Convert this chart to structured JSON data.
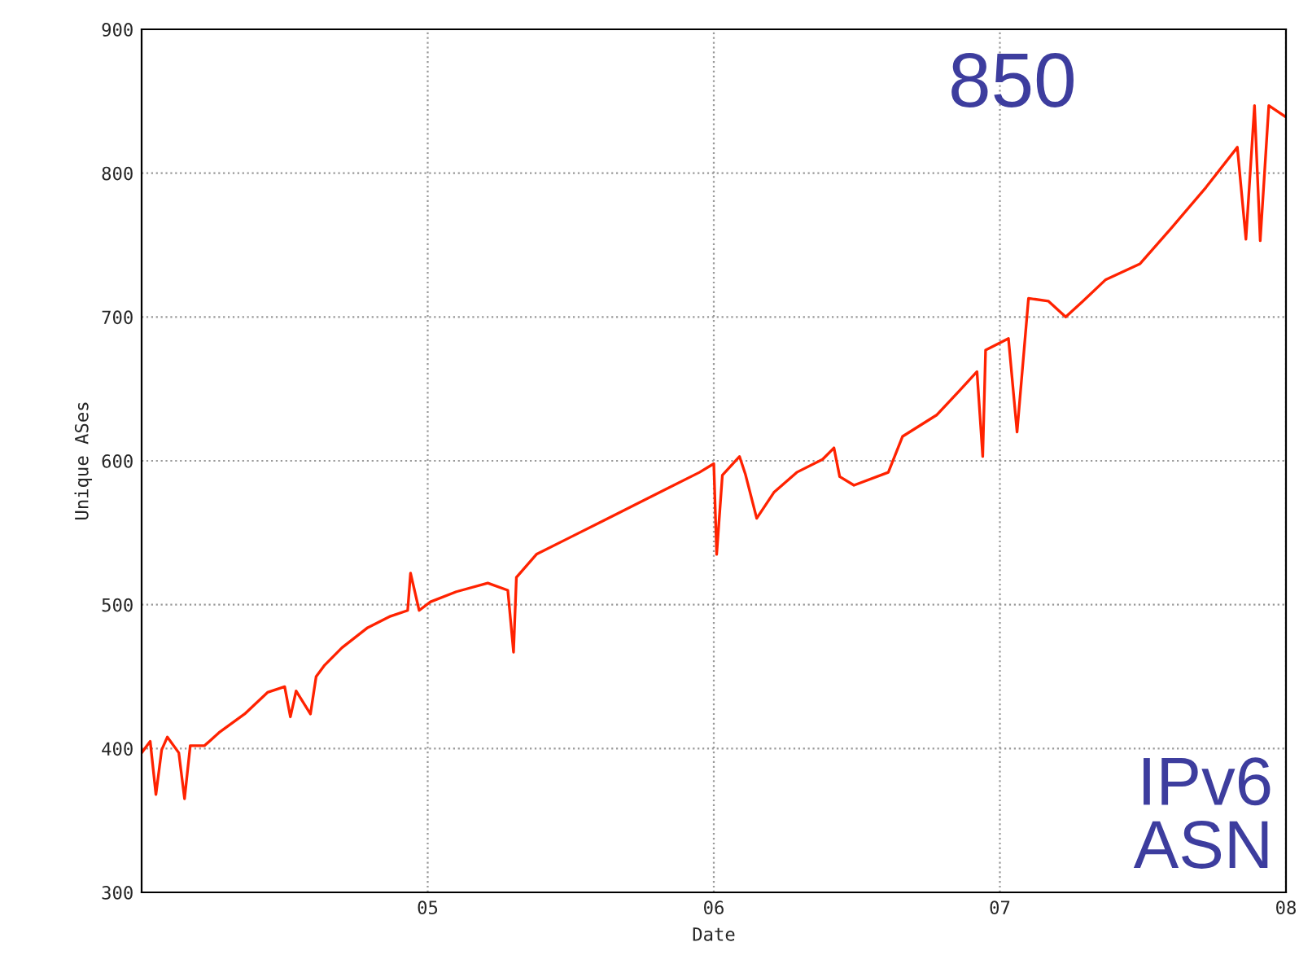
{
  "chart_data": {
    "type": "line",
    "xlabel": "Date",
    "ylabel": "Unique ASes",
    "annotations": [
      "850",
      "IPv6\nASN"
    ],
    "x": [
      2004.0,
      2004.03,
      2004.05,
      2004.07,
      2004.09,
      2004.13,
      2004.15,
      2004.17,
      2004.22,
      2004.27,
      2004.36,
      2004.44,
      2004.5,
      2004.52,
      2004.54,
      2004.59,
      2004.61,
      2004.64,
      2004.7,
      2004.79,
      2004.87,
      2004.93,
      2004.94,
      2004.97,
      2005.01,
      2005.1,
      2005.21,
      2005.28,
      2005.3,
      2005.31,
      2005.38,
      2005.5,
      2005.61,
      2005.72,
      2005.84,
      2005.95,
      2006.0,
      2006.01,
      2006.03,
      2006.09,
      2006.11,
      2006.15,
      2006.21,
      2006.29,
      2006.38,
      2006.42,
      2006.44,
      2006.49,
      2006.61,
      2006.66,
      2006.78,
      2006.86,
      2006.92,
      2006.94,
      2006.95,
      2007.03,
      2007.06,
      2007.1,
      2007.17,
      2007.23,
      2007.29,
      2007.37,
      2007.49,
      2007.6,
      2007.72,
      2007.83,
      2007.86,
      2007.89,
      2007.91,
      2007.94,
      2008.0
    ],
    "series": [
      {
        "color": "#ff2200",
        "values": [
          397,
          405,
          368,
          399,
          408,
          397,
          365,
          402,
          402,
          411,
          424,
          439,
          443,
          422,
          440,
          424,
          450,
          458,
          470,
          484,
          492,
          496,
          522,
          496,
          502,
          509,
          515,
          510,
          467,
          519,
          535,
          547,
          558,
          569,
          581,
          592,
          598,
          535,
          590,
          603,
          591,
          560,
          578,
          592,
          601,
          609,
          589,
          583,
          592,
          617,
          632,
          649,
          662,
          603,
          677,
          685,
          620,
          713,
          711,
          700,
          711,
          726,
          737,
          762,
          790,
          818,
          754,
          847,
          753,
          847,
          839
        ]
      }
    ],
    "xlim": [
      2004,
      2008
    ],
    "xticks": [
      {
        "value": 2005,
        "label": "05"
      },
      {
        "value": 2006,
        "label": "06"
      },
      {
        "value": 2007,
        "label": "07"
      },
      {
        "value": 2008,
        "label": "08"
      }
    ],
    "ylim": [
      300,
      900
    ],
    "yticks": [
      300,
      400,
      500,
      600,
      700,
      800,
      900
    ],
    "grid": true,
    "marker": "none",
    "line_style": "solid"
  }
}
